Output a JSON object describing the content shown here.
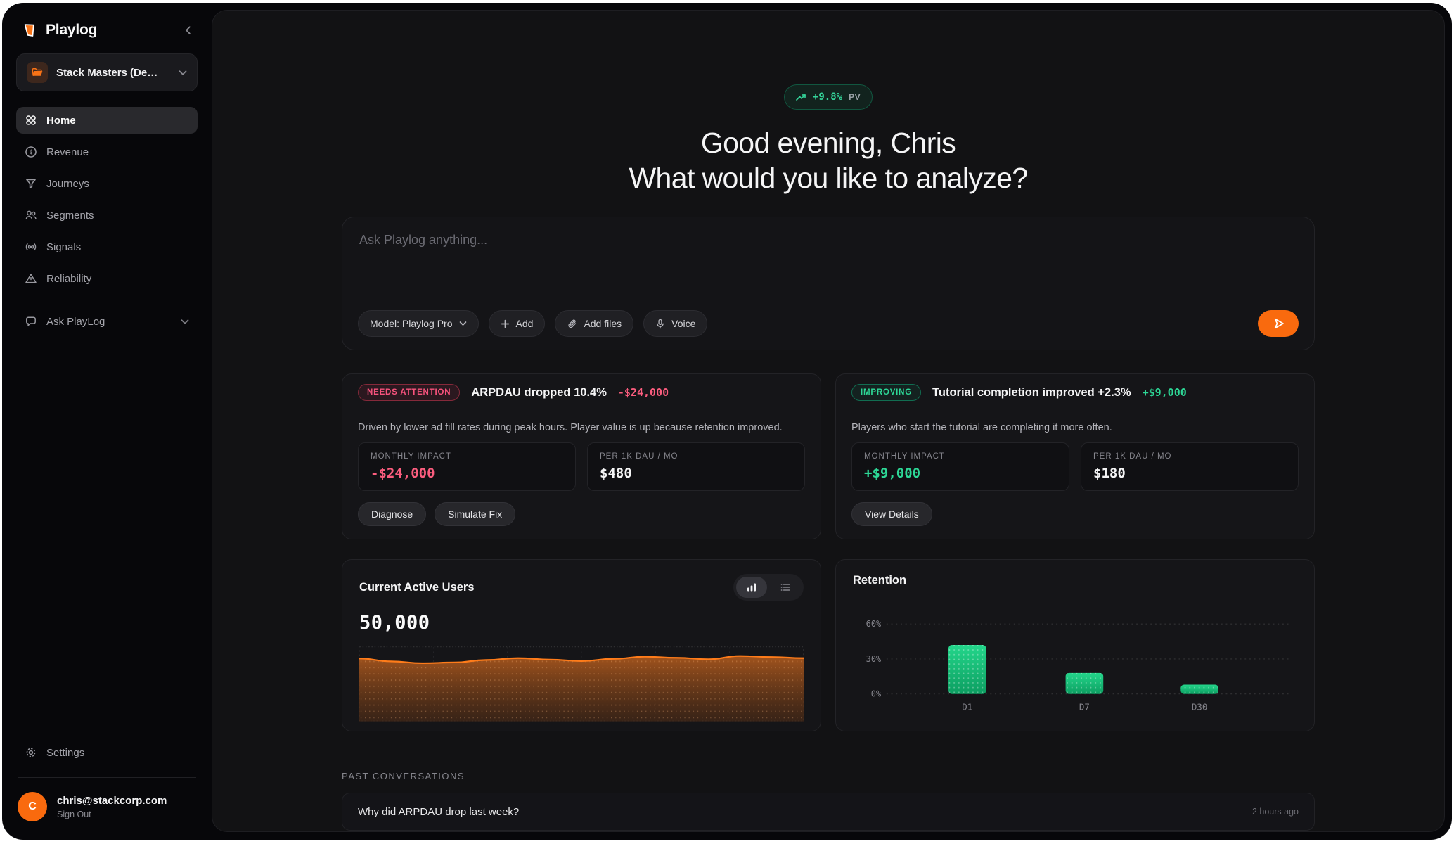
{
  "app": {
    "name": "Playlog"
  },
  "sidebar": {
    "workspace": {
      "label": "Stack Masters (De…"
    },
    "nav": [
      {
        "label": "Home",
        "icon": "grid-icon",
        "active": true
      },
      {
        "label": "Revenue",
        "icon": "dollar-circle-icon"
      },
      {
        "label": "Journeys",
        "icon": "funnel-icon"
      },
      {
        "label": "Segments",
        "icon": "users-icon"
      },
      {
        "label": "Signals",
        "icon": "broadcast-icon"
      },
      {
        "label": "Reliability",
        "icon": "warning-triangle-icon"
      },
      {
        "label": "Ask PlayLog",
        "icon": "chat-bubble-icon"
      }
    ],
    "settings_label": "Settings",
    "account": {
      "email": "chris@stackcorp.com",
      "sign_out": "Sign Out",
      "avatar_initial": "C"
    }
  },
  "hero": {
    "badge": {
      "value": "+9.8%",
      "suffix": "PV"
    },
    "greeting_line1": "Good evening, Chris",
    "greeting_line2": "What would you like to analyze?"
  },
  "prompt": {
    "placeholder": "Ask Playlog anything...",
    "model_button": "Model: Playlog Pro",
    "add_button": "Add",
    "add_files_button": "Add files",
    "voice_button": "Voice"
  },
  "insights": [
    {
      "badge": "NEEDS ATTENTION",
      "title": "ARPDAU dropped 10.4%",
      "delta": "-$24,000",
      "description": "Driven by lower ad fill rates during peak hours. Player value is up because retention improved.",
      "stats": [
        {
          "label": "MONTHLY IMPACT",
          "value": "-$24,000"
        },
        {
          "label": "PER 1K DAU / MO",
          "value": "$480"
        }
      ],
      "actions": [
        "Diagnose",
        "Simulate Fix"
      ]
    },
    {
      "badge": "IMPROVING",
      "title": "Tutorial completion improved +2.3%",
      "delta": "+$9,000",
      "description": "Players who start the tutorial are completing it more often.",
      "stats": [
        {
          "label": "MONTHLY IMPACT",
          "value": "+$9,000"
        },
        {
          "label": "PER 1K DAU / MO",
          "value": "$180"
        }
      ],
      "actions": [
        "View Details"
      ]
    }
  ],
  "charts": {
    "active_users": {
      "title": "Current Active Users",
      "value": "50,000"
    },
    "retention": {
      "title": "Retention"
    }
  },
  "chart_data": [
    {
      "type": "area",
      "title": "Current Active Users",
      "current_value": 50000,
      "values": [
        49700,
        49300,
        49050,
        49150,
        49500,
        49750,
        49550,
        49350,
        49650,
        49950,
        49800,
        49600,
        50050,
        49900,
        49750
      ],
      "grid": "dashed-vertical-columns",
      "color": "#ff7c1a"
    },
    {
      "type": "bar",
      "title": "Retention",
      "categories": [
        "D1",
        "D7",
        "D30"
      ],
      "values": [
        42,
        18,
        8
      ],
      "yticks": [
        {
          "label": "0%",
          "value": 0
        },
        {
          "label": "30%",
          "value": 30
        },
        {
          "label": "60%",
          "value": 60
        }
      ],
      "ylim": [
        0,
        75
      ],
      "color": "#15c37e"
    }
  ],
  "conversations": {
    "header": "PAST CONVERSATIONS",
    "items": [
      {
        "question": "Why did ARPDAU drop last week?",
        "time": "2 hours ago"
      }
    ]
  },
  "colors": {
    "accent": "#f97316",
    "positive": "#10b981",
    "negative": "#fb5d7e"
  }
}
